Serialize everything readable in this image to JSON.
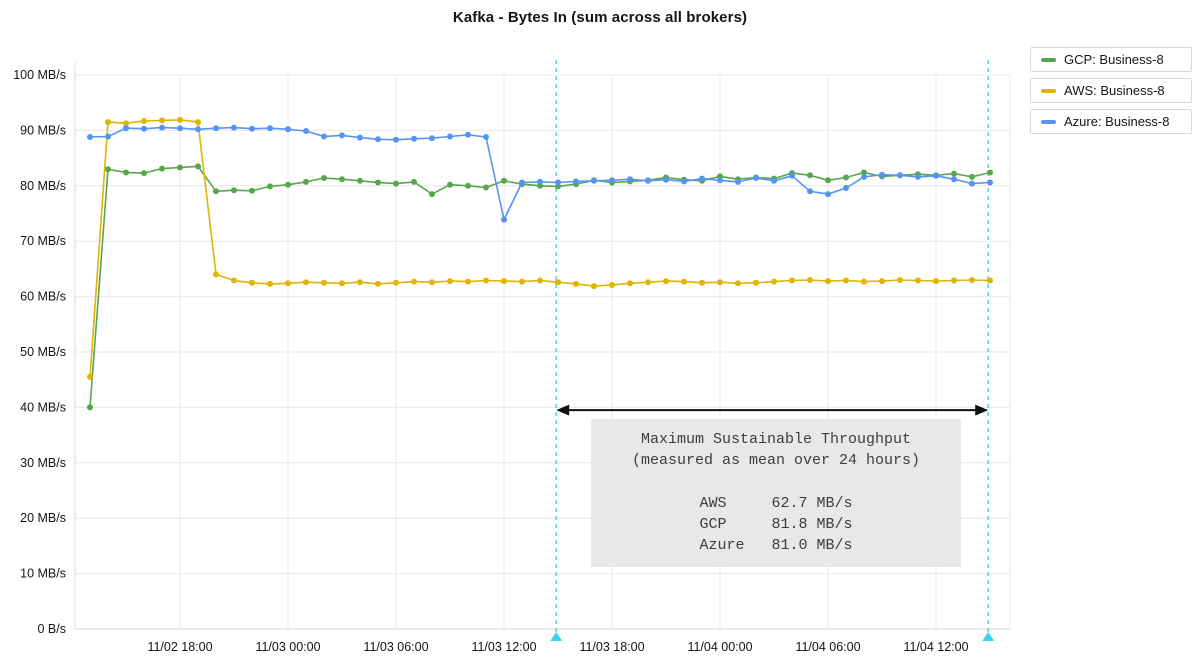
{
  "title": "Kafka - Bytes In (sum across all brokers)",
  "annotation": {
    "text": "Maximum Sustainable Throughput\n(measured as mean over 24 hours)\n\nAWS     62.7 MB/s\nGCP     81.8 MB/s\nAzure   81.0 MB/s"
  },
  "chart_data": {
    "type": "line",
    "title": "Kafka - Bytes In (sum across all brokers)",
    "xlabel": "",
    "ylabel": "",
    "ylim": [
      0,
      100
    ],
    "grid": true,
    "legend_position": "top-right",
    "x_unit": "hours, one point per hour starting 11/02 13:00",
    "x_ticks": [
      {
        "t": 5,
        "label": "11/02 18:00"
      },
      {
        "t": 11,
        "label": "11/03 00:00"
      },
      {
        "t": 17,
        "label": "11/03 06:00"
      },
      {
        "t": 23,
        "label": "11/03 12:00"
      },
      {
        "t": 29,
        "label": "11/03 18:00"
      },
      {
        "t": 35,
        "label": "11/04 00:00"
      },
      {
        "t": 41,
        "label": "11/04 06:00"
      },
      {
        "t": 47,
        "label": "11/04 12:00"
      }
    ],
    "y_ticks": [
      {
        "v": 0,
        "label": "0 B/s"
      },
      {
        "v": 10,
        "label": "10 MB/s"
      },
      {
        "v": 20,
        "label": "20 MB/s"
      },
      {
        "v": 30,
        "label": "30 MB/s"
      },
      {
        "v": 40,
        "label": "40 MB/s"
      },
      {
        "v": 50,
        "label": "50 MB/s"
      },
      {
        "v": 60,
        "label": "60 MB/s"
      },
      {
        "v": 70,
        "label": "70 MB/s"
      },
      {
        "v": 80,
        "label": "80 MB/s"
      },
      {
        "v": 90,
        "label": "90 MB/s"
      },
      {
        "v": 100,
        "label": "100 MB/s"
      }
    ],
    "series": [
      {
        "name": "GCP: Business-8",
        "color": "#56a64b",
        "mean_24h": "81.8 MB/s",
        "values": [
          40.0,
          83.0,
          82.4,
          82.3,
          83.1,
          83.3,
          83.5,
          79.0,
          79.2,
          79.1,
          79.9,
          80.2,
          80.7,
          81.4,
          81.2,
          80.9,
          80.6,
          80.4,
          80.7,
          78.5,
          80.2,
          80.0,
          79.7,
          80.9,
          80.3,
          80.0,
          79.9,
          80.3,
          81.0,
          80.6,
          80.8,
          81.0,
          81.5,
          81.1,
          80.9,
          81.7,
          81.2,
          81.5,
          81.3,
          82.3,
          81.9,
          81.0,
          81.5,
          82.4,
          81.7,
          81.9,
          82.1,
          81.9,
          82.2,
          81.6,
          82.4
        ]
      },
      {
        "name": "AWS: Business-8",
        "color": "#e0b400",
        "mean_24h": "62.7 MB/s",
        "values": [
          45.5,
          91.5,
          91.3,
          91.7,
          91.8,
          91.9,
          91.5,
          64.0,
          62.9,
          62.5,
          62.3,
          62.4,
          62.6,
          62.5,
          62.4,
          62.6,
          62.3,
          62.5,
          62.7,
          62.6,
          62.8,
          62.7,
          62.9,
          62.8,
          62.7,
          62.9,
          62.6,
          62.3,
          61.9,
          62.1,
          62.4,
          62.6,
          62.8,
          62.7,
          62.5,
          62.6,
          62.4,
          62.5,
          62.7,
          62.9,
          63.0,
          62.8,
          62.9,
          62.7,
          62.8,
          63.0,
          62.9,
          62.8,
          62.9,
          63.0,
          62.9
        ]
      },
      {
        "name": "Azure: Business-8",
        "color": "#5794f2",
        "mean_24h": "81.0 MB/s",
        "values": [
          88.8,
          88.9,
          90.4,
          90.3,
          90.5,
          90.4,
          90.2,
          90.4,
          90.5,
          90.3,
          90.4,
          90.2,
          89.9,
          88.9,
          89.1,
          88.7,
          88.4,
          88.3,
          88.5,
          88.6,
          88.9,
          89.2,
          88.8,
          73.9,
          80.6,
          80.7,
          80.6,
          80.8,
          80.9,
          81.0,
          81.2,
          80.9,
          81.1,
          80.8,
          81.3,
          81.0,
          80.7,
          81.4,
          80.9,
          81.8,
          79.0,
          78.5,
          79.6,
          81.6,
          82.0,
          81.9,
          81.6,
          81.8,
          81.2,
          80.4,
          80.6
        ]
      }
    ],
    "annotation_window": {
      "start_t": 25.9,
      "end_t": 49.9,
      "arrow_value": 39.5,
      "color": "#3bd2f0",
      "label": "Maximum Sustainable Throughput (measured as mean over 24 hours)",
      "values": {
        "AWS": "62.7 MB/s",
        "GCP": "81.8 MB/s",
        "Azure": "81.0 MB/s"
      }
    }
  }
}
